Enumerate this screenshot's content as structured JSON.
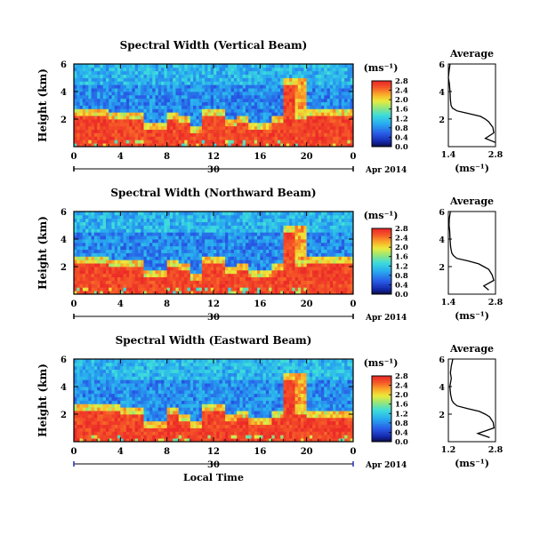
{
  "chart_data": [
    {
      "type": "heatmap",
      "title": "Spectral Width (Vertical Beam)",
      "ylabel": "Height (km)",
      "ylim": [
        0,
        6
      ],
      "yticks": [
        "2",
        "4",
        "6"
      ],
      "xlim": [
        0,
        24
      ],
      "xticks": [
        "0",
        "4",
        "8",
        "12",
        "16",
        "20",
        "0"
      ],
      "date_label": "30",
      "month_label": "Apr 2014",
      "colorbar": {
        "unit": "(ms⁻¹)",
        "range": [
          0,
          2.8
        ],
        "ticks": [
          "0.0",
          "0.4",
          "0.8",
          "1.2",
          "1.6",
          "2.0",
          "2.4",
          "2.8"
        ]
      },
      "low_layer_top_km": [
        2.3,
        2.3,
        2.3,
        2.2,
        2.2,
        2.1,
        1.3,
        1.3,
        2.1,
        1.8,
        1.1,
        2.3,
        2.3,
        1.6,
        1.9,
        1.3,
        1.4,
        1.9,
        4.7,
        2.1,
        2.5,
        2.5,
        2.5,
        2.5
      ],
      "average_profile": {
        "title": "Average",
        "xlabel": "(ms⁻¹)",
        "xlim": [
          1.4,
          2.8
        ],
        "xticks": [
          "1.4",
          "2.8"
        ],
        "yticks": [
          "2",
          "4",
          "6"
        ],
        "height_km": [
          0.3,
          0.6,
          1.0,
          1.4,
          1.8,
          2.0,
          2.2,
          2.4,
          2.6,
          2.8,
          3.0,
          3.4,
          4.0,
          4.6,
          5.0,
          5.5,
          6.0
        ],
        "width_ms": [
          2.8,
          2.5,
          2.75,
          2.72,
          2.6,
          2.5,
          2.35,
          2.0,
          1.65,
          1.52,
          1.48,
          1.46,
          1.45,
          1.43,
          1.4,
          1.42,
          1.45
        ]
      }
    },
    {
      "type": "heatmap",
      "title": "Spectral Width (Northward Beam)",
      "ylabel": "Height (km)",
      "ylim": [
        0,
        6
      ],
      "yticks": [
        "2",
        "4",
        "6"
      ],
      "xlim": [
        0,
        24
      ],
      "xticks": [
        "0",
        "4",
        "8",
        "12",
        "16",
        "20",
        "0"
      ],
      "date_label": "30",
      "month_label": "Apr 2014",
      "colorbar": {
        "unit": "(ms⁻¹)",
        "range": [
          0,
          2.8
        ],
        "ticks": [
          "0.0",
          "0.4",
          "0.8",
          "1.2",
          "1.6",
          "2.0",
          "2.4",
          "2.8"
        ]
      },
      "low_layer_top_km": [
        2.3,
        2.3,
        2.3,
        2.2,
        2.2,
        2.1,
        1.4,
        1.4,
        2.2,
        1.8,
        1.2,
        2.3,
        2.3,
        1.7,
        1.9,
        1.4,
        1.4,
        2.0,
        4.6,
        2.1,
        2.4,
        2.4,
        2.4,
        2.4
      ],
      "average_profile": {
        "title": "Average",
        "xlabel": "(ms⁻¹)",
        "xlim": [
          1.4,
          2.8
        ],
        "xticks": [
          "1.4",
          "2.8"
        ],
        "yticks": [
          "2",
          "4",
          "6"
        ],
        "height_km": [
          0.3,
          0.6,
          1.0,
          1.4,
          1.8,
          2.0,
          2.2,
          2.4,
          2.6,
          2.8,
          3.0,
          3.4,
          4.0,
          4.6,
          5.0,
          5.5,
          6.0
        ],
        "width_ms": [
          2.6,
          2.45,
          2.75,
          2.7,
          2.6,
          2.45,
          2.3,
          2.0,
          1.65,
          1.55,
          1.5,
          1.47,
          1.45,
          1.44,
          1.42,
          1.43,
          1.46
        ]
      }
    },
    {
      "type": "heatmap",
      "title": "Spectral Width (Eastward Beam)",
      "ylabel": "Height (km)",
      "ylim": [
        0,
        6
      ],
      "yticks": [
        "2",
        "4",
        "6"
      ],
      "xlim": [
        0,
        24
      ],
      "xticks": [
        "0",
        "4",
        "8",
        "12",
        "16",
        "20",
        "0"
      ],
      "date_label": "30",
      "month_label": "Apr 2014",
      "xlabel": "Local Time",
      "colorbar": {
        "unit": "(ms⁻¹)",
        "range": [
          0,
          2.8
        ],
        "ticks": [
          "0.0",
          "0.4",
          "0.8",
          "1.2",
          "1.6",
          "2.0",
          "2.4",
          "2.8"
        ]
      },
      "low_layer_top_km": [
        2.4,
        2.4,
        2.4,
        2.3,
        2.2,
        2.1,
        1.2,
        1.2,
        2.1,
        1.7,
        1.2,
        2.4,
        2.3,
        1.6,
        1.8,
        1.3,
        1.4,
        1.9,
        4.6,
        2.1,
        2.0,
        2.0,
        2.0,
        2.0
      ],
      "average_profile": {
        "title": "Average",
        "xlabel": "(ms⁻¹)",
        "xlim": [
          1.2,
          2.8
        ],
        "xticks": [
          "1.2",
          "2.8"
        ],
        "yticks": [
          "2",
          "4",
          "6"
        ],
        "height_km": [
          0.3,
          0.6,
          1.0,
          1.4,
          1.8,
          2.0,
          2.2,
          2.4,
          2.6,
          2.8,
          3.0,
          3.4,
          4.0,
          4.6,
          5.0,
          5.5,
          6.0
        ],
        "width_ms": [
          2.6,
          2.2,
          2.75,
          2.72,
          2.6,
          2.45,
          2.25,
          1.85,
          1.5,
          1.38,
          1.32,
          1.28,
          1.25,
          1.3,
          1.27,
          1.3,
          1.35
        ]
      }
    }
  ]
}
